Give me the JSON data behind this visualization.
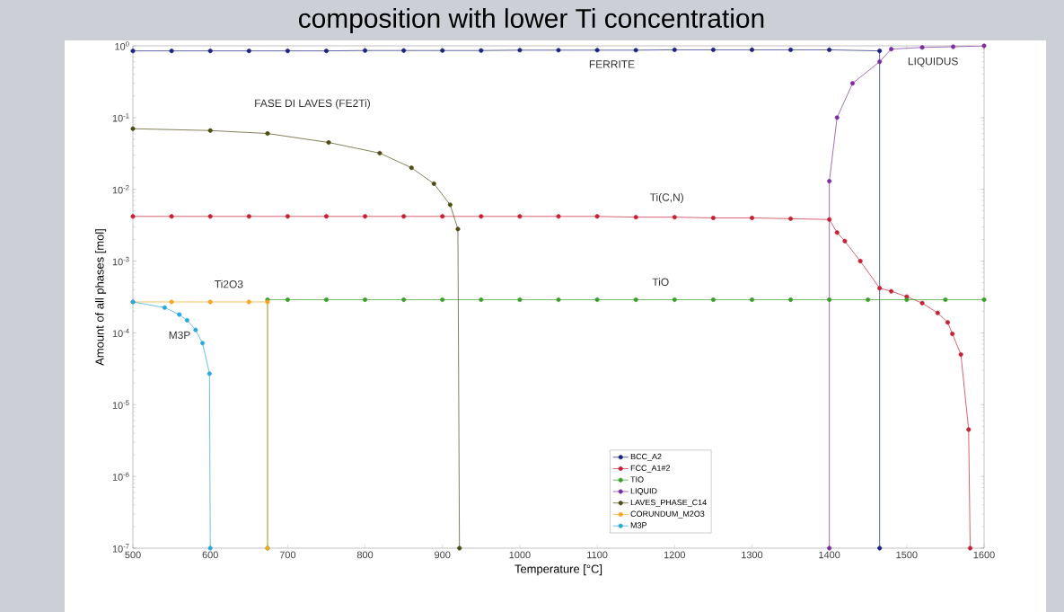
{
  "chart_data": {
    "type": "line",
    "title": "composition with lower Ti concentration",
    "xlabel": "Temperature [°C]",
    "ylabel": "Amount of all phases [mol]",
    "log": "y",
    "marker": "circle",
    "line_style": "solid",
    "legend": "bottom",
    "grid": false,
    "xlim": [
      500,
      1600
    ],
    "xticks": [
      500,
      600,
      700,
      800,
      900,
      1000,
      1100,
      1200,
      1300,
      1400,
      1500,
      1600
    ],
    "ylim": [
      1e-07,
      1
    ],
    "yticks": [
      {
        "value": 1e-07,
        "label": "10$^{-7}$"
      },
      {
        "value": 1e-06,
        "label": "10$^{-6}$"
      },
      {
        "value": 1e-05,
        "label": "10$^{-5}$"
      },
      {
        "value": 0.0001,
        "label": "10$^{-4}$"
      },
      {
        "value": 0.001,
        "label": "10$^{-3}$"
      },
      {
        "value": 0.01,
        "label": "10$^{-2}$"
      },
      {
        "value": 0.1,
        "label": "10$^{-1}$"
      },
      {
        "value": 1,
        "label": "10$^{0}$"
      }
    ],
    "series": [
      {
        "name": "BCC_A2",
        "color": "#1a237e",
        "x": [
          500,
          550,
          600,
          650,
          700,
          750,
          800,
          850,
          900,
          950,
          1000,
          1050,
          1100,
          1150,
          1200,
          1250,
          1300,
          1350,
          1400,
          1465,
          1465
        ],
        "values": [
          0.85,
          0.85,
          0.85,
          0.85,
          0.85,
          0.85,
          0.86,
          0.86,
          0.86,
          0.86,
          0.87,
          0.87,
          0.87,
          0.87,
          0.88,
          0.88,
          0.88,
          0.88,
          0.88,
          0.85,
          1e-07
        ]
      },
      {
        "name": "FCC_A1#2",
        "color": "#c62035",
        "x": [
          500,
          550,
          600,
          650,
          700,
          750,
          800,
          850,
          900,
          950,
          1000,
          1050,
          1100,
          1150,
          1200,
          1250,
          1300,
          1350,
          1400,
          1410,
          1420,
          1440,
          1465,
          1480,
          1500,
          1520,
          1540,
          1553,
          1559,
          1570,
          1580,
          1582
        ],
        "values": [
          0.0042,
          0.0042,
          0.0042,
          0.0042,
          0.0042,
          0.0042,
          0.0042,
          0.0042,
          0.0042,
          0.0042,
          0.0042,
          0.0042,
          0.0042,
          0.0041,
          0.0041,
          0.004,
          0.004,
          0.0039,
          0.0038,
          0.0025,
          0.0019,
          0.001,
          0.00042,
          0.00038,
          0.00032,
          0.00026,
          0.00019,
          0.00014,
          9.7e-05,
          5e-05,
          4.5e-06,
          1e-07
        ]
      },
      {
        "name": "TIO",
        "color": "#3aa02a",
        "x": [
          674,
          674,
          700,
          750,
          800,
          850,
          900,
          950,
          1000,
          1050,
          1100,
          1150,
          1200,
          1250,
          1300,
          1350,
          1400,
          1450,
          1500,
          1550,
          1600
        ],
        "values": [
          1e-07,
          0.00029,
          0.00029,
          0.00029,
          0.00029,
          0.00029,
          0.00029,
          0.00029,
          0.00029,
          0.00029,
          0.00029,
          0.00029,
          0.00029,
          0.00029,
          0.00029,
          0.00029,
          0.00029,
          0.00029,
          0.00029,
          0.00029,
          0.00029
        ]
      },
      {
        "name": "LIQUID",
        "color": "#7b2f9e",
        "x": [
          1400,
          1400,
          1410,
          1430,
          1465,
          1480,
          1520,
          1560,
          1600
        ],
        "values": [
          1e-07,
          0.013,
          0.1,
          0.3,
          0.6,
          0.9,
          0.95,
          0.97,
          1
        ]
      },
      {
        "name": "LAVES_PHASE_C14",
        "color": "#4d4a12",
        "x": [
          500,
          600,
          674,
          753,
          819,
          860,
          889,
          910,
          920,
          922
        ],
        "values": [
          0.07,
          0.066,
          0.06,
          0.045,
          0.032,
          0.02,
          0.012,
          0.0061,
          0.0028,
          1e-07
        ]
      },
      {
        "name": "CORUNDUM_M2O3",
        "color": "#f5a623",
        "x": [
          500,
          550,
          600,
          650,
          674,
          674
        ],
        "values": [
          0.00027,
          0.00027,
          0.00027,
          0.00027,
          0.00027,
          1e-07
        ]
      },
      {
        "name": "M3P",
        "color": "#29a8e0",
        "x": [
          500,
          541,
          560,
          570,
          581,
          590,
          599,
          600
        ],
        "values": [
          0.00027,
          0.000225,
          0.00018,
          0.00015,
          0.00011,
          7.2e-05,
          2.7e-05,
          1e-07
        ]
      }
    ],
    "annotations": [
      {
        "text": "FERRITE",
        "x": 1119,
        "y": 0.87
      },
      {
        "text": "LIQUIDUS",
        "x": 1534,
        "y": 0.96
      },
      {
        "text": "FASE DI LAVES (FE2Ti)",
        "x": 732,
        "y": 0.05
      },
      {
        "text": "Ti(C,N)",
        "x": 1190,
        "y": 0.0041
      },
      {
        "text": "Ti2O3",
        "x": 624,
        "y": 0.00027
      },
      {
        "text": "TiO",
        "x": 1182,
        "y": 0.00029
      },
      {
        "text": "M3P",
        "x": 581,
        "y": 0.00011
      }
    ]
  }
}
